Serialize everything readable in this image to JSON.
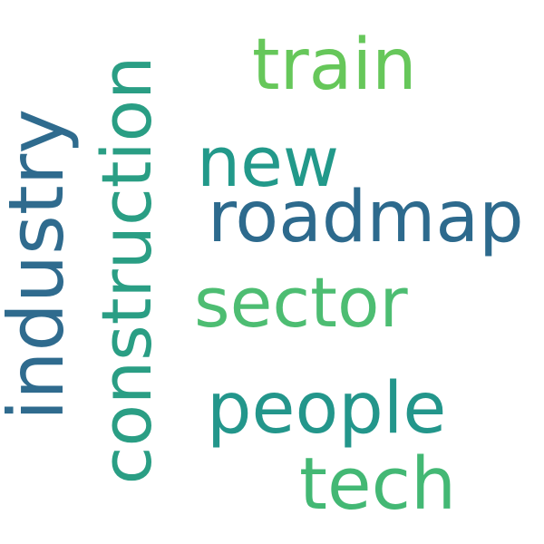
{
  "words": {
    "train": {
      "text": "train",
      "color": "#66c75a"
    },
    "new": {
      "text": "new",
      "color": "#22998a"
    },
    "roadmap": {
      "text": "roadmap",
      "color": "#2d6a8d"
    },
    "sector": {
      "text": "sector",
      "color": "#4dbd72"
    },
    "people": {
      "text": "people",
      "color": "#23968b"
    },
    "tech": {
      "text": "tech",
      "color": "#43b874"
    },
    "industry": {
      "text": "industry",
      "color": "#2f6b8e"
    },
    "construction": {
      "text": "construction",
      "color": "#2a9e84"
    }
  }
}
